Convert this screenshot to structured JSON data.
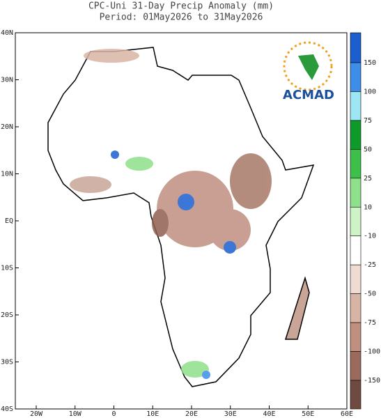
{
  "title": "CPC-Uni 31-Day Precip Anomaly (mm)",
  "subtitle": "Period: 01May2026 to 31May2026",
  "logo": "ACMAD",
  "lat_labels": [
    "40N",
    "30N",
    "20N",
    "10N",
    "EQ",
    "10S",
    "20S",
    "30S",
    "40S"
  ],
  "lon_labels": [
    "20W",
    "10W",
    "0",
    "10E",
    "20E",
    "30E",
    "40E",
    "50E",
    "60E"
  ],
  "colorbar": {
    "levels": [
      150,
      100,
      75,
      50,
      25,
      10,
      -10,
      -25,
      -50,
      -75,
      -100,
      -150
    ],
    "colors": [
      "#1b5fcf",
      "#3d8ee8",
      "#9fe6f5",
      "#0e9a2a",
      "#3cc04a",
      "#8fe08a",
      "#cdf3c6",
      "#ffffff",
      "#eedbd2",
      "#d8b4a4",
      "#bf8f80",
      "#9c6a5c",
      "#6e4a40",
      "#fdf5a0"
    ]
  }
}
